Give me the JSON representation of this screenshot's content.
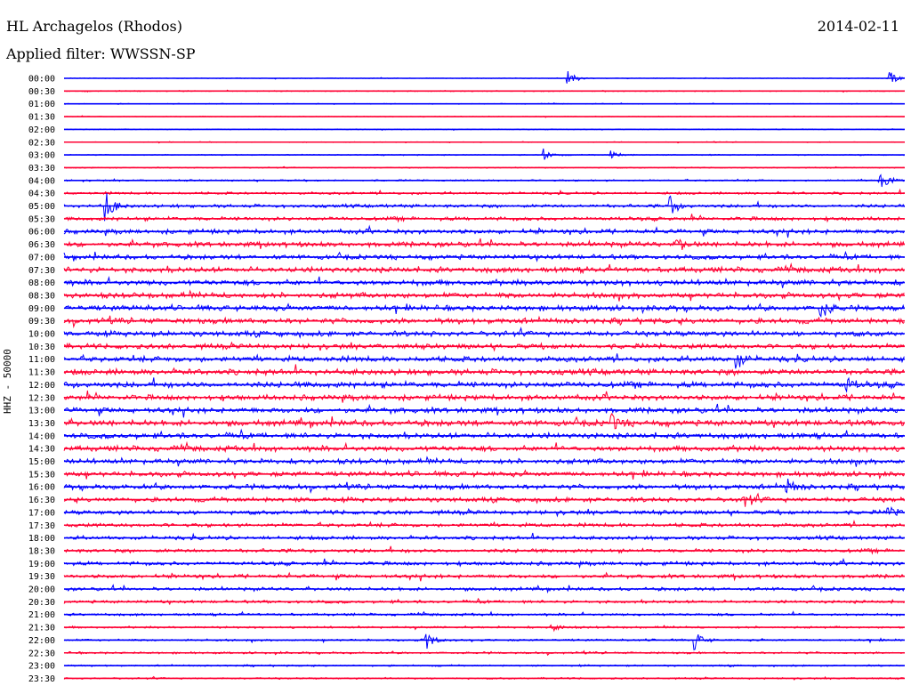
{
  "header": {
    "station": "HL Archagelos (Rhodos)",
    "date": "2014-02-11",
    "filter": "Applied filter: WWSSN-SP"
  },
  "chart_data": {
    "type": "line",
    "title": "HL Archagelos (Rhodos)",
    "subtitle": "Applied filter: WWSSN-SP",
    "ylabel": "HHZ - 50000",
    "colors": {
      "even": "#0000ff",
      "odd": "#ff0033"
    },
    "rows": [
      "00:00",
      "00:30",
      "01:00",
      "01:30",
      "02:00",
      "02:30",
      "03:00",
      "03:30",
      "04:00",
      "04:30",
      "05:00",
      "05:30",
      "06:00",
      "06:30",
      "07:00",
      "07:30",
      "08:00",
      "08:30",
      "09:00",
      "09:30",
      "10:00",
      "10:30",
      "11:00",
      "11:30",
      "12:00",
      "12:30",
      "13:00",
      "13:30",
      "14:00",
      "14:30",
      "15:00",
      "15:30",
      "16:00",
      "16:30",
      "17:00",
      "17:30",
      "18:00",
      "18:30",
      "19:00",
      "19:30",
      "20:00",
      "20:30",
      "21:00",
      "21:30",
      "22:00",
      "22:30",
      "23:00",
      "23:30"
    ],
    "noise_level": [
      0.3,
      0.5,
      0.4,
      0.4,
      0.4,
      0.4,
      0.5,
      0.5,
      0.8,
      1.2,
      1.6,
      1.8,
      2.2,
      2.4,
      2.2,
      2.6,
      2.6,
      2.6,
      2.6,
      2.6,
      2.5,
      2.4,
      2.6,
      2.8,
      2.8,
      2.6,
      2.6,
      2.8,
      2.6,
      2.6,
      2.4,
      2.4,
      2.4,
      2.2,
      2.0,
      1.8,
      1.8,
      1.8,
      1.8,
      1.8,
      1.6,
      1.4,
      1.2,
      1.0,
      1.0,
      1.0,
      0.8,
      0.8
    ],
    "events": [
      {
        "row": 0,
        "t": 0.6,
        "amp": 9
      },
      {
        "row": 0,
        "t": 0.98,
        "amp": 10
      },
      {
        "row": 6,
        "t": 0.57,
        "amp": 7
      },
      {
        "row": 6,
        "t": 0.65,
        "amp": 6
      },
      {
        "row": 8,
        "t": 0.97,
        "amp": 12
      },
      {
        "row": 10,
        "t": 0.05,
        "amp": 16
      },
      {
        "row": 10,
        "t": 0.72,
        "amp": 12
      },
      {
        "row": 13,
        "t": 0.73,
        "amp": 8
      },
      {
        "row": 18,
        "t": 0.9,
        "amp": 12
      },
      {
        "row": 22,
        "t": 0.8,
        "amp": 10
      },
      {
        "row": 24,
        "t": 0.93,
        "amp": 9
      },
      {
        "row": 27,
        "t": 0.65,
        "amp": 10
      },
      {
        "row": 32,
        "t": 0.86,
        "amp": 10
      },
      {
        "row": 33,
        "t": 0.81,
        "amp": 10
      },
      {
        "row": 34,
        "t": 0.98,
        "amp": 6
      },
      {
        "row": 43,
        "t": 0.58,
        "amp": 6
      },
      {
        "row": 44,
        "t": 0.43,
        "amp": 12
      },
      {
        "row": 44,
        "t": 0.75,
        "amp": 10
      }
    ]
  }
}
